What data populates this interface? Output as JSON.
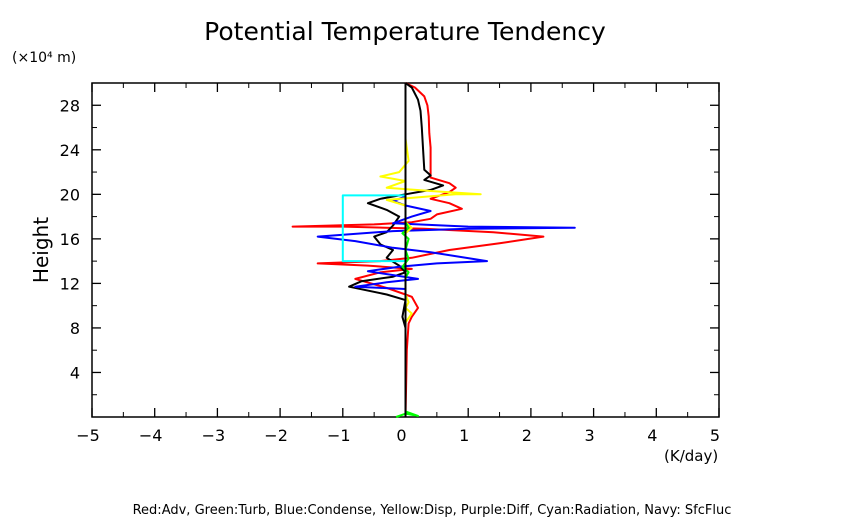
{
  "chart_data": {
    "type": "line",
    "title": "Potential Temperature Tendency",
    "y_unit_label": "(×10⁴ m)",
    "ylabel": "Height",
    "x_unit_label": "(K/day)",
    "caption": "Red:Adv, Green:Turb, Blue:Condense, Yellow:Disp, Purple:Diff, Cyan:Radiation, Navy: SfcFluc",
    "xlim": [
      -5,
      5
    ],
    "ylim": [
      0,
      30
    ],
    "x_ticks": [
      -5,
      -4,
      -3,
      -2,
      -1,
      0,
      1,
      2,
      3,
      4,
      5
    ],
    "x_tick_labels": [
      "−5",
      "−4",
      "−3",
      "−2",
      "−1",
      "0",
      "1",
      "2",
      "3",
      "4",
      "5"
    ],
    "y_ticks": [
      4,
      8,
      12,
      16,
      20,
      24,
      28
    ],
    "y_tick_labels": [
      "4",
      "8",
      "12",
      "16",
      "20",
      "24",
      "28"
    ],
    "grid": false,
    "series": [
      {
        "color": "#ff0000",
        "points": [
          [
            0,
            0
          ],
          [
            0.02,
            6
          ],
          [
            0.05,
            8.4
          ],
          [
            0.1,
            9
          ],
          [
            0.2,
            9.8
          ],
          [
            0.15,
            10.3
          ],
          [
            0.1,
            10.8
          ],
          [
            0,
            11
          ],
          [
            -0.3,
            11.6
          ],
          [
            -0.8,
            12.4
          ],
          [
            -0.4,
            13
          ],
          [
            0.1,
            13.3
          ],
          [
            -0.6,
            13.6
          ],
          [
            -1.4,
            13.8
          ],
          [
            -0.4,
            14
          ],
          [
            0.1,
            14.3
          ],
          [
            0.7,
            15
          ],
          [
            1.5,
            15.6
          ],
          [
            2.2,
            16.2
          ],
          [
            1.4,
            16.6
          ],
          [
            0.3,
            16.9
          ],
          [
            -1,
            17.1
          ],
          [
            -1.8,
            17.1
          ],
          [
            -0.5,
            17.3
          ],
          [
            0.1,
            17.5
          ],
          [
            0.4,
            17.8
          ],
          [
            0.5,
            18.2
          ],
          [
            0.9,
            18.7
          ],
          [
            0.7,
            19.2
          ],
          [
            0.4,
            19.6
          ],
          [
            0.7,
            20.2
          ],
          [
            0.8,
            20.6
          ],
          [
            0.7,
            21
          ],
          [
            0.4,
            21.5
          ],
          [
            0.4,
            22
          ],
          [
            0.4,
            23
          ],
          [
            0.4,
            24.2
          ],
          [
            0.38,
            25.5
          ],
          [
            0.37,
            27
          ],
          [
            0.35,
            28
          ],
          [
            0.3,
            28.8
          ],
          [
            0.15,
            29.6
          ],
          [
            0,
            30
          ]
        ]
      },
      {
        "color": "#000000",
        "points": [
          [
            0,
            0
          ],
          [
            0,
            8
          ],
          [
            -0.05,
            9
          ],
          [
            0,
            10.5
          ],
          [
            -0.3,
            11
          ],
          [
            -0.9,
            11.7
          ],
          [
            -0.7,
            12.2
          ],
          [
            -0.2,
            12.6
          ],
          [
            0,
            13
          ],
          [
            -0.1,
            13.6
          ],
          [
            -0.3,
            14.3
          ],
          [
            -0.2,
            15
          ],
          [
            -0.4,
            15.5
          ],
          [
            -0.5,
            16.2
          ],
          [
            -0.3,
            16.6
          ],
          [
            -0.2,
            17.2
          ],
          [
            -0.1,
            18
          ],
          [
            -0.3,
            18.6
          ],
          [
            -0.6,
            19.2
          ],
          [
            -0.4,
            19.6
          ],
          [
            0,
            20
          ],
          [
            0.4,
            20.4
          ],
          [
            0.6,
            20.8
          ],
          [
            0.3,
            21.3
          ],
          [
            0.4,
            21.7
          ],
          [
            0.3,
            22.2
          ],
          [
            0.28,
            24
          ],
          [
            0.26,
            26
          ],
          [
            0.24,
            27.5
          ],
          [
            0.2,
            28.5
          ],
          [
            0.1,
            29.6
          ],
          [
            0,
            30
          ]
        ]
      },
      {
        "color": "#0000ff",
        "points": [
          [
            0,
            0
          ],
          [
            0,
            11.5
          ],
          [
            -0.4,
            11.6
          ],
          [
            -0.8,
            11.7
          ],
          [
            -0.3,
            12.1
          ],
          [
            0.2,
            12.4
          ],
          [
            -0.6,
            13.1
          ],
          [
            -0.1,
            13.5
          ],
          [
            0.5,
            13.8
          ],
          [
            1.3,
            14
          ],
          [
            0.4,
            14.8
          ],
          [
            -0.2,
            15.2
          ],
          [
            -0.8,
            15.8
          ],
          [
            -1.4,
            16.2
          ],
          [
            -0.2,
            16.7
          ],
          [
            1,
            16.9
          ],
          [
            2.7,
            17
          ],
          [
            1,
            17.1
          ],
          [
            -0.2,
            17.4
          ],
          [
            0.1,
            18
          ],
          [
            0.4,
            18.5
          ],
          [
            0,
            19
          ],
          [
            -0.2,
            19.4
          ],
          [
            0,
            19.8
          ],
          [
            0,
            30
          ]
        ]
      },
      {
        "color": "#ffff00",
        "points": [
          [
            0,
            0
          ],
          [
            0,
            8.5
          ],
          [
            0.1,
            9.3
          ],
          [
            0,
            9.8
          ],
          [
            0.05,
            10.3
          ],
          [
            0,
            11
          ],
          [
            0,
            13.5
          ],
          [
            0,
            16.5
          ],
          [
            0.1,
            17
          ],
          [
            0,
            17.5
          ],
          [
            0,
            19
          ],
          [
            -0.3,
            19.5
          ],
          [
            0.8,
            20
          ],
          [
            1.2,
            20
          ],
          [
            0.4,
            20.3
          ],
          [
            -0.3,
            20.6
          ],
          [
            0,
            21.2
          ],
          [
            -0.4,
            21.6
          ],
          [
            -0.1,
            22
          ],
          [
            0.05,
            23
          ],
          [
            0,
            25
          ],
          [
            0,
            30
          ]
        ]
      },
      {
        "color": "#00ff00",
        "points": [
          [
            -0.15,
            0
          ],
          [
            0,
            0.3
          ],
          [
            0.2,
            0.1
          ],
          [
            0,
            0.5
          ],
          [
            0,
            12.5
          ],
          [
            0.05,
            13
          ],
          [
            -0.05,
            13.5
          ],
          [
            0.05,
            14.2
          ],
          [
            0,
            15
          ],
          [
            0.05,
            16
          ],
          [
            -0.05,
            16.5
          ],
          [
            0.05,
            17
          ],
          [
            0,
            17.5
          ],
          [
            0,
            30
          ]
        ]
      },
      {
        "color": "#800080",
        "points": [
          [
            0,
            0
          ],
          [
            0,
            30
          ]
        ]
      },
      {
        "color": "#00ffff",
        "points": [
          [
            0,
            14
          ],
          [
            -1,
            14
          ],
          [
            -1,
            19.9
          ],
          [
            0,
            19.9
          ]
        ]
      },
      {
        "color": "#000080",
        "points": [
          [
            0,
            0
          ],
          [
            0,
            30
          ]
        ]
      }
    ]
  }
}
